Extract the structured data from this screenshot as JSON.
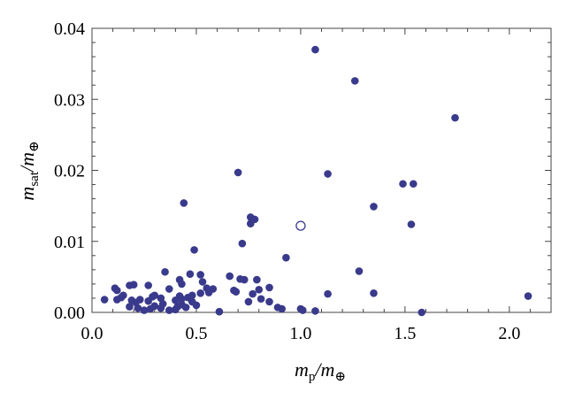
{
  "chart_data": {
    "type": "scatter",
    "xlabel": {
      "main": "m",
      "sub": "p",
      "sep": "/m",
      "sym": "⊕"
    },
    "ylabel": {
      "main": "m",
      "sub": "sat",
      "sep": "/m",
      "sym": "⊕"
    },
    "xlim": [
      0,
      2.2
    ],
    "ylim": [
      0,
      0.04
    ],
    "x_ticks": [
      0.0,
      0.5,
      1.0,
      1.5,
      2.0
    ],
    "x_tick_labels": [
      "0.0",
      "0.5",
      "1.0",
      "1.5",
      "2.0"
    ],
    "y_ticks": [
      0.0,
      0.01,
      0.02,
      0.03,
      0.04
    ],
    "y_tick_labels": [
      "0.00",
      "0.01",
      "0.02",
      "0.03",
      "0.04"
    ],
    "grid": false,
    "colors": {
      "filled": "#3a3a8c",
      "open": "#3a3a8c"
    },
    "series": [
      {
        "marker": "filled",
        "points": [
          [
            1.07,
            0.037
          ],
          [
            1.26,
            0.0326
          ],
          [
            1.74,
            0.0274
          ],
          [
            0.7,
            0.0197
          ],
          [
            1.13,
            0.0195
          ],
          [
            1.49,
            0.0181
          ],
          [
            1.54,
            0.0181
          ],
          [
            0.44,
            0.0154
          ],
          [
            1.35,
            0.0149
          ],
          [
            0.76,
            0.0134
          ],
          [
            0.78,
            0.0131
          ],
          [
            0.76,
            0.0125
          ],
          [
            1.53,
            0.0124
          ],
          [
            0.72,
            0.0097
          ],
          [
            0.49,
            0.0088
          ],
          [
            0.93,
            0.0077
          ],
          [
            1.28,
            0.0058
          ],
          [
            0.35,
            0.0057
          ],
          [
            0.47,
            0.0054
          ],
          [
            0.52,
            0.0053
          ],
          [
            0.66,
            0.0051
          ],
          [
            0.71,
            0.0047
          ],
          [
            0.73,
            0.0046
          ],
          [
            0.42,
            0.0046
          ],
          [
            0.79,
            0.0046
          ],
          [
            0.53,
            0.0043
          ],
          [
            0.43,
            0.004
          ],
          [
            0.2,
            0.0039
          ],
          [
            0.27,
            0.0038
          ],
          [
            0.18,
            0.0038
          ],
          [
            0.11,
            0.0034
          ],
          [
            0.85,
            0.0035
          ],
          [
            0.55,
            0.0034
          ],
          [
            0.58,
            0.0033
          ],
          [
            0.37,
            0.0033
          ],
          [
            0.8,
            0.0032
          ],
          [
            0.12,
            0.0031
          ],
          [
            0.68,
            0.0031
          ],
          [
            0.69,
            0.0029
          ],
          [
            0.56,
            0.0028
          ],
          [
            0.52,
            0.0027
          ],
          [
            0.77,
            0.0026
          ],
          [
            1.35,
            0.0027
          ],
          [
            1.13,
            0.0026
          ],
          [
            0.15,
            0.0024
          ],
          [
            0.48,
            0.0024
          ],
          [
            0.3,
            0.0024
          ],
          [
            0.42,
            0.0023
          ],
          [
            0.29,
            0.0022
          ],
          [
            0.46,
            0.0021
          ],
          [
            0.14,
            0.0021
          ],
          [
            0.33,
            0.002
          ],
          [
            0.43,
            0.0019
          ],
          [
            0.81,
            0.0019
          ],
          [
            0.06,
            0.0018
          ],
          [
            0.12,
            0.0018
          ],
          [
            0.23,
            0.0018
          ],
          [
            0.19,
            0.0017
          ],
          [
            0.4,
            0.0017
          ],
          [
            0.27,
            0.0016
          ],
          [
            0.48,
            0.0015
          ],
          [
            0.75,
            0.0015
          ],
          [
            0.85,
            0.0015
          ],
          [
            0.21,
            0.0014
          ],
          [
            0.34,
            0.0012
          ],
          [
            0.43,
            0.0011
          ],
          [
            0.5,
            0.001
          ],
          [
            0.3,
            0.0009
          ],
          [
            0.41,
            0.0008
          ],
          [
            0.18,
            0.0008
          ],
          [
            0.89,
            0.0007
          ],
          [
            0.45,
            0.0007
          ],
          [
            0.33,
            0.0006
          ],
          [
            0.22,
            0.0006
          ],
          [
            0.28,
            0.0005
          ],
          [
            0.91,
            0.0005
          ],
          [
            0.4,
            0.0004
          ],
          [
            1.0,
            0.0005
          ],
          [
            0.25,
            0.0003
          ],
          [
            0.37,
            0.0003
          ],
          [
            1.01,
            0.0003
          ],
          [
            0.61,
            0.0001
          ],
          [
            1.07,
            0.0002
          ],
          [
            1.58,
            0.0
          ],
          [
            2.09,
            0.0023
          ]
        ]
      },
      {
        "marker": "open",
        "points": [
          [
            1.0,
            0.0122
          ]
        ]
      }
    ]
  }
}
